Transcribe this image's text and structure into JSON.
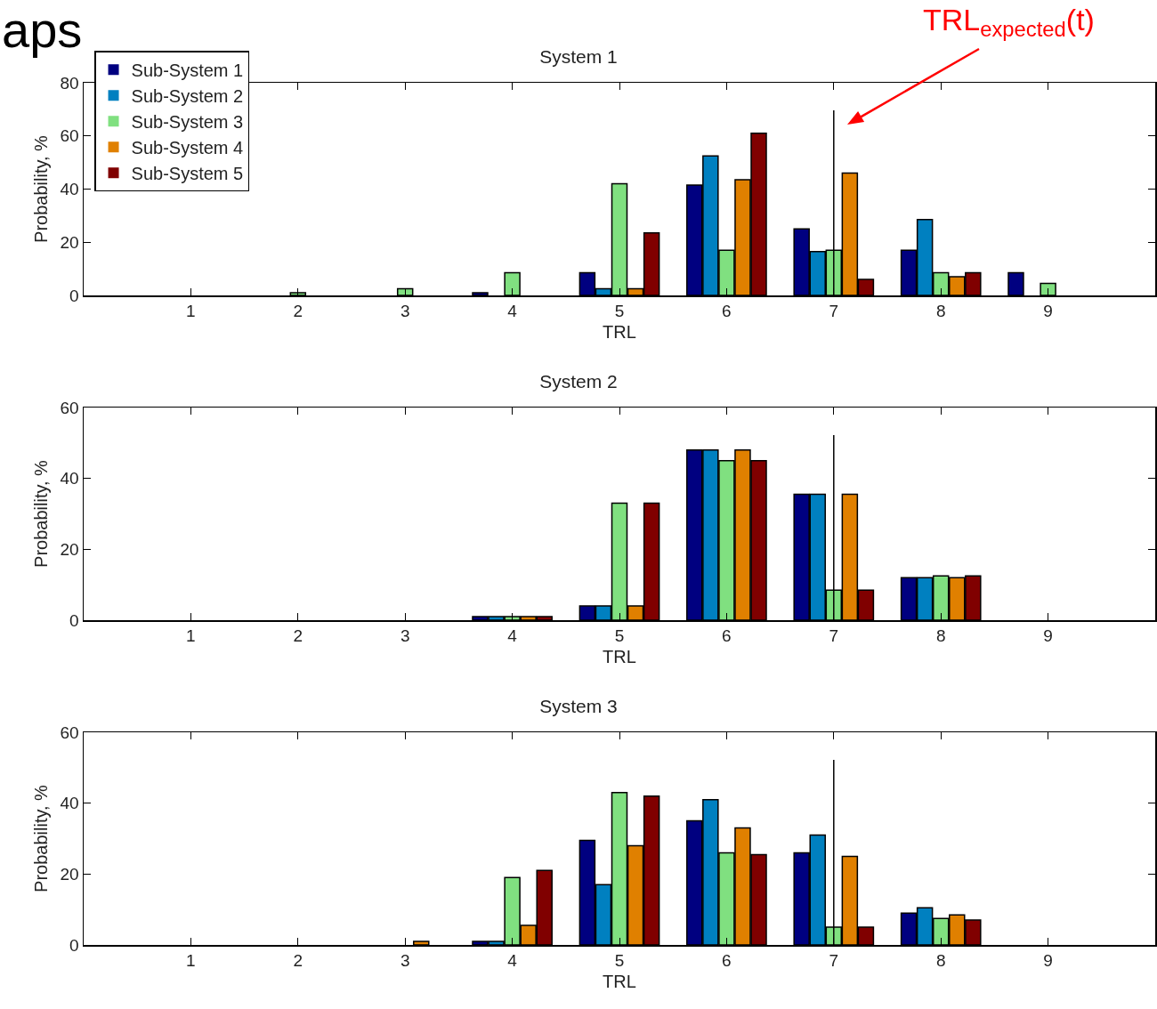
{
  "chart_data": [
    {
      "type": "bar",
      "title": "System 1",
      "xlabel": "TRL",
      "ylabel": "Probability, %",
      "x": [
        1,
        2,
        3,
        4,
        5,
        6,
        7,
        8,
        9
      ],
      "xlim": [
        0,
        10
      ],
      "xticks": [
        1,
        2,
        3,
        4,
        5,
        6,
        7,
        8,
        9
      ],
      "ylim": [
        0,
        80
      ],
      "yticks": [
        0,
        20,
        40,
        60,
        80
      ],
      "grid": false,
      "legend": "top left",
      "series": [
        {
          "name": "Sub-System 1",
          "color": "#000080",
          "values": [
            0,
            0,
            0,
            1,
            8.5,
            41.5,
            25,
            17,
            8.5
          ]
        },
        {
          "name": "Sub-System 2",
          "color": "#0080c0",
          "values": [
            0,
            0,
            0,
            0,
            2.5,
            52.5,
            16.5,
            28.5,
            0
          ]
        },
        {
          "name": "Sub-System 3",
          "color": "#80e080",
          "values": [
            0,
            1,
            2.5,
            8.5,
            42,
            17,
            17,
            8.5,
            4.5
          ]
        },
        {
          "name": "Sub-System 4",
          "color": "#e08000",
          "values": [
            0,
            0,
            0,
            0,
            2.5,
            43.5,
            46,
            7,
            0
          ]
        },
        {
          "name": "Sub-System 5",
          "color": "#800000",
          "values": [
            0,
            0,
            0,
            0,
            23.5,
            61,
            6,
            8.5,
            0
          ]
        }
      ],
      "ref_lines": [
        {
          "axis": "x",
          "value": 7
        }
      ],
      "annotations": [
        "aps",
        "TRL$_{expected}$(t)"
      ]
    },
    {
      "type": "bar",
      "title": "System 2",
      "xlabel": "TRL",
      "ylabel": "Probability, %",
      "x": [
        1,
        2,
        3,
        4,
        5,
        6,
        7,
        8,
        9
      ],
      "xlim": [
        0,
        10
      ],
      "xticks": [
        1,
        2,
        3,
        4,
        5,
        6,
        7,
        8,
        9
      ],
      "ylim": [
        0,
        60
      ],
      "yticks": [
        0,
        20,
        40,
        60
      ],
      "grid": false,
      "legend": false,
      "series": [
        {
          "color": "#000080",
          "values": [
            0,
            0,
            0,
            1,
            4,
            48,
            35.5,
            12,
            0
          ]
        },
        {
          "color": "#0080c0",
          "values": [
            0,
            0,
            0,
            1,
            4,
            48,
            35.5,
            12,
            0
          ]
        },
        {
          "color": "#80e080",
          "values": [
            0,
            0,
            0,
            1,
            33,
            45,
            8.5,
            12.5,
            0
          ]
        },
        {
          "color": "#e08000",
          "values": [
            0,
            0,
            0,
            1,
            4,
            48,
            35.5,
            12,
            0
          ]
        },
        {
          "color": "#800000",
          "values": [
            0,
            0,
            0,
            1,
            33,
            45,
            8.5,
            12.5,
            0
          ]
        }
      ],
      "ref_lines": [
        {
          "axis": "x",
          "value": 7
        }
      ]
    },
    {
      "type": "bar",
      "title": "System 3",
      "xlabel": "TRL",
      "ylabel": "Probability, %",
      "x": [
        1,
        2,
        3,
        4,
        5,
        6,
        7,
        8,
        9
      ],
      "xlim": [
        0,
        10
      ],
      "xticks": [
        1,
        2,
        3,
        4,
        5,
        6,
        7,
        8,
        9
      ],
      "ylim": [
        0,
        60
      ],
      "yticks": [
        0,
        20,
        40,
        60
      ],
      "grid": false,
      "legend": false,
      "series": [
        {
          "color": "#000080",
          "values": [
            0,
            0,
            0,
            1,
            29.5,
            35,
            26,
            9,
            0
          ]
        },
        {
          "color": "#0080c0",
          "values": [
            0,
            0,
            0,
            1,
            17,
            41,
            31,
            10.5,
            0
          ]
        },
        {
          "color": "#80e080",
          "values": [
            0,
            0,
            0,
            19,
            43,
            26,
            5,
            7.5,
            0
          ]
        },
        {
          "color": "#e08000",
          "values": [
            0,
            0,
            1,
            5.5,
            28,
            33,
            25,
            8.5,
            0
          ]
        },
        {
          "color": "#800000",
          "values": [
            0,
            0,
            0,
            21,
            42,
            25.5,
            5,
            7,
            0
          ]
        }
      ],
      "ref_lines": [
        {
          "axis": "x",
          "value": 7
        }
      ]
    }
  ]
}
